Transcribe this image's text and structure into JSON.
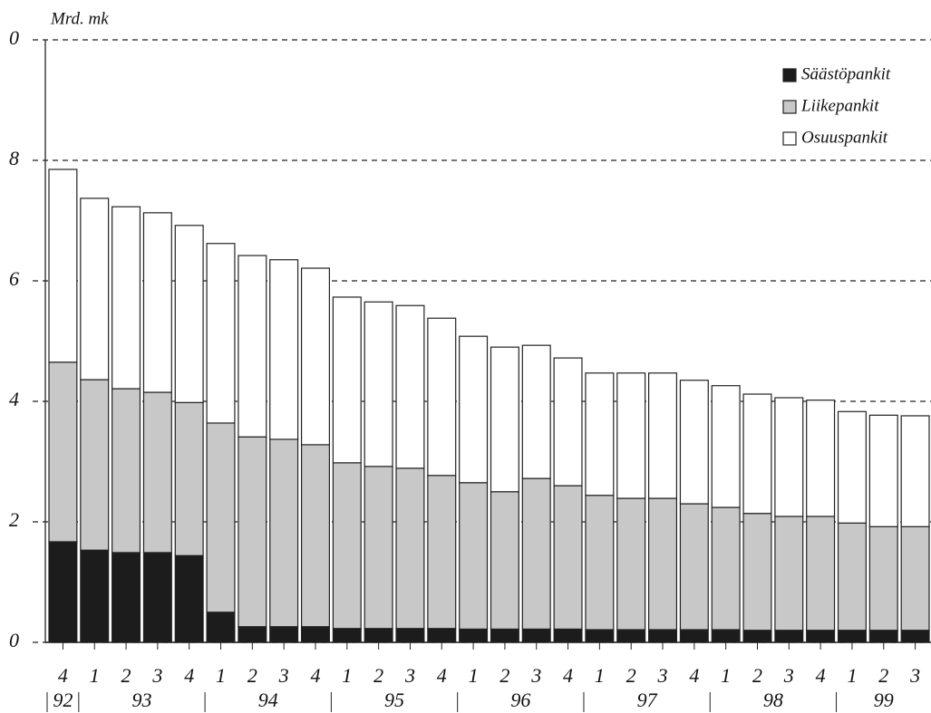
{
  "chart_data": {
    "type": "stacked_bar",
    "y_axis_label": "Mrd. mk",
    "groups": [
      {
        "label": "92",
        "quarters": [
          "4"
        ]
      },
      {
        "label": "93",
        "quarters": [
          "1",
          "2",
          "3",
          "4"
        ]
      },
      {
        "label": "94",
        "quarters": [
          "1",
          "2",
          "3",
          "4"
        ]
      },
      {
        "label": "95",
        "quarters": [
          "1",
          "2",
          "3",
          "4"
        ]
      },
      {
        "label": "96",
        "quarters": [
          "1",
          "2",
          "3",
          "4"
        ]
      },
      {
        "label": "97",
        "quarters": [
          "1",
          "2",
          "3",
          "4"
        ]
      },
      {
        "label": "98",
        "quarters": [
          "1",
          "2",
          "3",
          "4"
        ]
      },
      {
        "label": "99",
        "quarters": [
          "1",
          "2",
          "3"
        ]
      }
    ],
    "series": [
      {
        "name": "Säästöpankit",
        "color": "#1c1c1c",
        "values": [
          1.67,
          1.53,
          1.49,
          1.49,
          1.44,
          0.5,
          0.26,
          0.26,
          0.26,
          0.23,
          0.23,
          0.23,
          0.23,
          0.22,
          0.22,
          0.22,
          0.22,
          0.21,
          0.21,
          0.21,
          0.21,
          0.21,
          0.2,
          0.2,
          0.2,
          0.2,
          0.2,
          0.2
        ]
      },
      {
        "name": "Liikepankit",
        "color": "#c8c8c8",
        "values": [
          2.98,
          2.83,
          2.72,
          2.66,
          2.54,
          3.14,
          3.15,
          3.11,
          3.02,
          2.75,
          2.69,
          2.66,
          2.54,
          2.43,
          2.28,
          2.5,
          2.38,
          2.23,
          2.18,
          2.18,
          2.09,
          2.03,
          1.94,
          1.89,
          1.89,
          1.78,
          1.72,
          1.72
        ]
      },
      {
        "name": "Osuuspankit",
        "color": "#ffffff",
        "values": [
          3.2,
          3.01,
          3.02,
          2.98,
          2.94,
          2.98,
          3.01,
          2.98,
          2.93,
          2.75,
          2.73,
          2.7,
          2.61,
          2.43,
          2.4,
          2.21,
          2.12,
          2.03,
          2.08,
          2.08,
          2.05,
          2.02,
          1.98,
          1.97,
          1.93,
          1.85,
          1.85,
          1.84
        ]
      }
    ],
    "ylim": [
      0,
      10
    ],
    "yticks": [
      0,
      2,
      4,
      6,
      8,
      {
        "value": 10,
        "label": "0"
      }
    ],
    "grid": true,
    "legend": "top-right"
  }
}
